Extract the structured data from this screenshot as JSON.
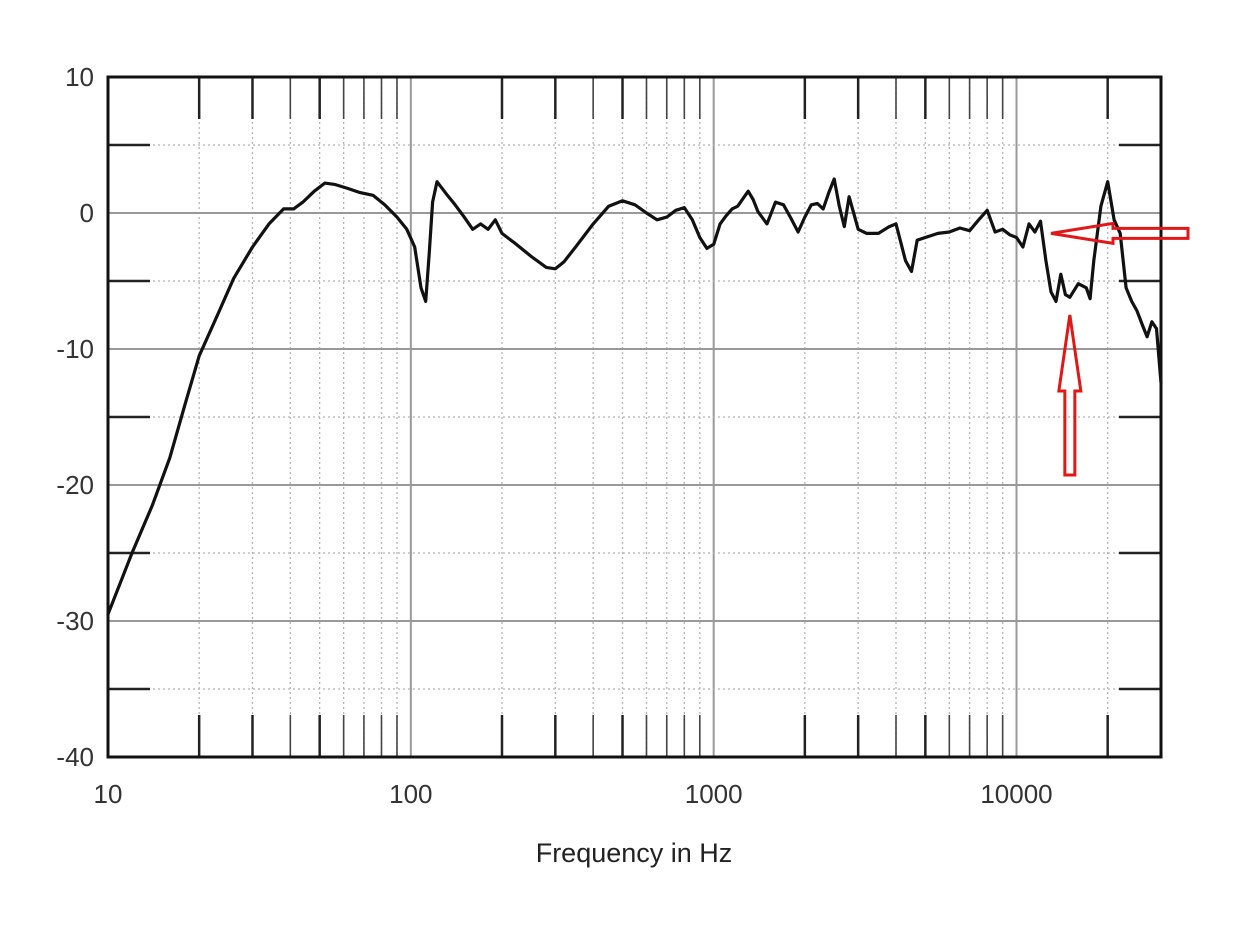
{
  "chart_data": {
    "type": "line",
    "title": "",
    "xlabel": "Frequency in Hz",
    "ylabel": "",
    "x_scale": "log",
    "xlim": [
      10,
      30000
    ],
    "ylim": [
      -40,
      10
    ],
    "x_tick_labels": [
      "10",
      "100",
      "1000",
      "10000"
    ],
    "x_tick_values": [
      10,
      100,
      1000,
      10000
    ],
    "y_tick_labels": [
      "10",
      "0",
      "-10",
      "-20",
      "-30",
      "-40"
    ],
    "y_tick_values": [
      10,
      0,
      -10,
      -20,
      -30,
      -40
    ],
    "y_minor_values": [
      5,
      -5,
      -15,
      -25,
      -35
    ],
    "grid": true,
    "colors": {
      "line": "#111111",
      "grid_major": "#999999",
      "grid_minor": "#b5b5b5",
      "annotation": "#e01818"
    },
    "series": [
      {
        "x": [
          10,
          12,
          14,
          16,
          18,
          20,
          23,
          26,
          30,
          34,
          38,
          41,
          44,
          48,
          52,
          56,
          62,
          68,
          75,
          82,
          90,
          97,
          103,
          108,
          112,
          115,
          118,
          122,
          126,
          132,
          140,
          150,
          160,
          170,
          180,
          190,
          200,
          220,
          250,
          280,
          300,
          320,
          350,
          400,
          450,
          500,
          550,
          600,
          650,
          700,
          750,
          800,
          850,
          900,
          950,
          1000,
          1050,
          1100,
          1150,
          1200,
          1300,
          1350,
          1400,
          1500,
          1600,
          1700,
          1800,
          1900,
          2000,
          2100,
          2200,
          2300,
          2400,
          2500,
          2600,
          2700,
          2800,
          3000,
          3200,
          3500,
          3800,
          4000,
          4300,
          4500,
          4700,
          5000,
          5500,
          6000,
          6500,
          7000,
          7500,
          8000,
          8500,
          9000,
          9500,
          10000,
          10500,
          11000,
          11500,
          12000,
          12500,
          13000,
          13500,
          14000,
          14500,
          15000,
          16000,
          17000,
          17500,
          18000,
          19000,
          20000,
          21000,
          22000,
          23000,
          24000,
          25000,
          26000,
          27000,
          28000,
          29000,
          30000
        ],
        "y": [
          -29.5,
          -25,
          -21.5,
          -18,
          -14,
          -10.5,
          -7.5,
          -4.8,
          -2.5,
          -0.8,
          0.3,
          0.3,
          0.8,
          1.6,
          2.2,
          2.1,
          1.8,
          1.5,
          1.3,
          0.6,
          -0.3,
          -1.2,
          -2.5,
          -5.5,
          -6.5,
          -3,
          0.8,
          2.3,
          1.9,
          1.3,
          0.6,
          -0.3,
          -1.2,
          -0.8,
          -1.2,
          -0.5,
          -1.5,
          -2.2,
          -3.2,
          -4,
          -4.1,
          -3.6,
          -2.5,
          -0.8,
          0.5,
          0.9,
          0.6,
          0,
          -0.5,
          -0.3,
          0.2,
          0.4,
          -0.5,
          -1.8,
          -2.6,
          -2.3,
          -0.8,
          -0.2,
          0.3,
          0.5,
          1.6,
          1,
          0.1,
          -0.8,
          0.8,
          0.6,
          -0.4,
          -1.4,
          -0.3,
          0.6,
          0.7,
          0.3,
          1.5,
          2.5,
          0.5,
          -1,
          1.2,
          -1.2,
          -1.5,
          -1.5,
          -1,
          -0.8,
          -3.5,
          -4.3,
          -2,
          -1.8,
          -1.5,
          -1.4,
          -1.1,
          -1.3,
          -0.5,
          0.2,
          -1.4,
          -1.2,
          -1.6,
          -1.8,
          -2.5,
          -0.8,
          -1.4,
          -0.6,
          -3.5,
          -5.8,
          -6.5,
          -4.5,
          -6,
          -6.2,
          -5.2,
          -5.5,
          -6.3,
          -3.5,
          0.5,
          2.3,
          -0.5,
          -1.5,
          -5.5,
          -6.5,
          -7.2,
          -8.2,
          -9.1,
          -8,
          -8.5,
          -12.5
        ]
      }
    ],
    "annotations": [
      {
        "type": "arrow",
        "direction": "left",
        "color": "#e01818",
        "target": [
          13000,
          -1.5
        ]
      },
      {
        "type": "arrow",
        "direction": "up",
        "color": "#e01818",
        "target": [
          15000,
          -7.5
        ]
      }
    ]
  }
}
